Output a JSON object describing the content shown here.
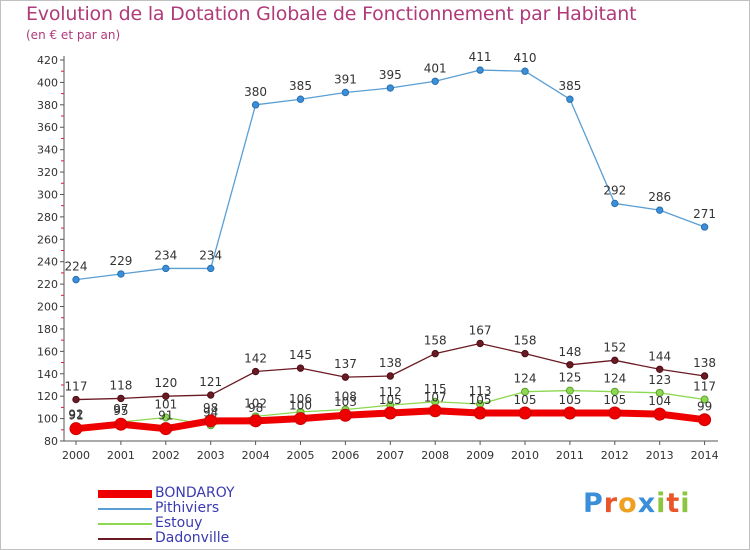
{
  "title": "Evolution de la Dotation Globale de Fonctionnement par Habitant",
  "subtitle": "(en € et par an)",
  "brand": {
    "letters": [
      "P",
      "r",
      "o",
      "x",
      "i",
      "t",
      "i"
    ],
    "colors": [
      "#3a8fd8",
      "#e8562a",
      "#f0a020",
      "#3a8fd8",
      "#8cc63f",
      "#e8562a",
      "#8cc63f"
    ]
  },
  "chart_data": {
    "type": "line",
    "x": [
      "2000",
      "2001",
      "2002",
      "2003",
      "2004",
      "2005",
      "2006",
      "2007",
      "2008",
      "2009",
      "2010",
      "2011",
      "2012",
      "2013",
      "2014"
    ],
    "ylim": [
      80,
      420
    ],
    "yticks": [
      "80",
      "100",
      "120",
      "140",
      "160",
      "180",
      "200",
      "220",
      "240",
      "260",
      "280",
      "300",
      "320",
      "340",
      "360",
      "380",
      "400",
      "420"
    ],
    "grid": false,
    "legend_position": "bottom-left",
    "series": [
      {
        "name": "Pithiviers",
        "color": "#5a9fd4",
        "values": [
          224,
          229,
          234,
          234,
          380,
          385,
          391,
          395,
          401,
          411,
          410,
          385,
          292,
          286,
          271
        ]
      },
      {
        "name": "Dadonville",
        "color": "#6b1a24",
        "values": [
          117,
          118,
          120,
          121,
          142,
          145,
          137,
          138,
          158,
          167,
          158,
          148,
          152,
          144,
          138
        ]
      },
      {
        "name": "Estouy",
        "color": "#8cd850",
        "values": [
          92,
          97,
          101,
          94,
          102,
          106,
          108,
          112,
          115,
          113,
          124,
          125,
          124,
          123,
          117
        ]
      },
      {
        "name": "BONDAROY",
        "color": "#ee0000",
        "values": [
          91,
          95,
          91,
          98,
          98,
          100,
          103,
          105,
          107,
          105,
          105,
          105,
          105,
          104,
          99
        ]
      }
    ],
    "labels": {
      "Pithiviers": [
        "224",
        "229",
        "234",
        "234",
        "380",
        "385",
        "391",
        "395",
        "401",
        "411",
        "410",
        "385",
        "292",
        "286",
        "271"
      ],
      "Dadonville": [
        "117",
        "118",
        "120",
        "121",
        "142",
        "145",
        "137",
        "138",
        "158",
        "167",
        "158",
        "148",
        "152",
        "144",
        "138"
      ],
      "Estouy": [
        "92",
        "97",
        "101",
        "94",
        "102",
        "106",
        "108",
        "112",
        "115",
        "113",
        "124",
        "125",
        "124",
        "123",
        "117"
      ],
      "BONDAROY": [
        "91",
        "95",
        "91",
        "98",
        "98",
        "100",
        "103",
        "105",
        "107",
        "105",
        "105",
        "105",
        "105",
        "104",
        "99"
      ]
    }
  },
  "legend": [
    {
      "label": "BONDAROY",
      "color": "#ee0000",
      "thickness": 8
    },
    {
      "label": "Pithiviers",
      "color": "#5a9fd4",
      "thickness": 2
    },
    {
      "label": "Estouy",
      "color": "#8cd850",
      "thickness": 2
    },
    {
      "label": "Dadonville",
      "color": "#6b1a24",
      "thickness": 2
    }
  ]
}
